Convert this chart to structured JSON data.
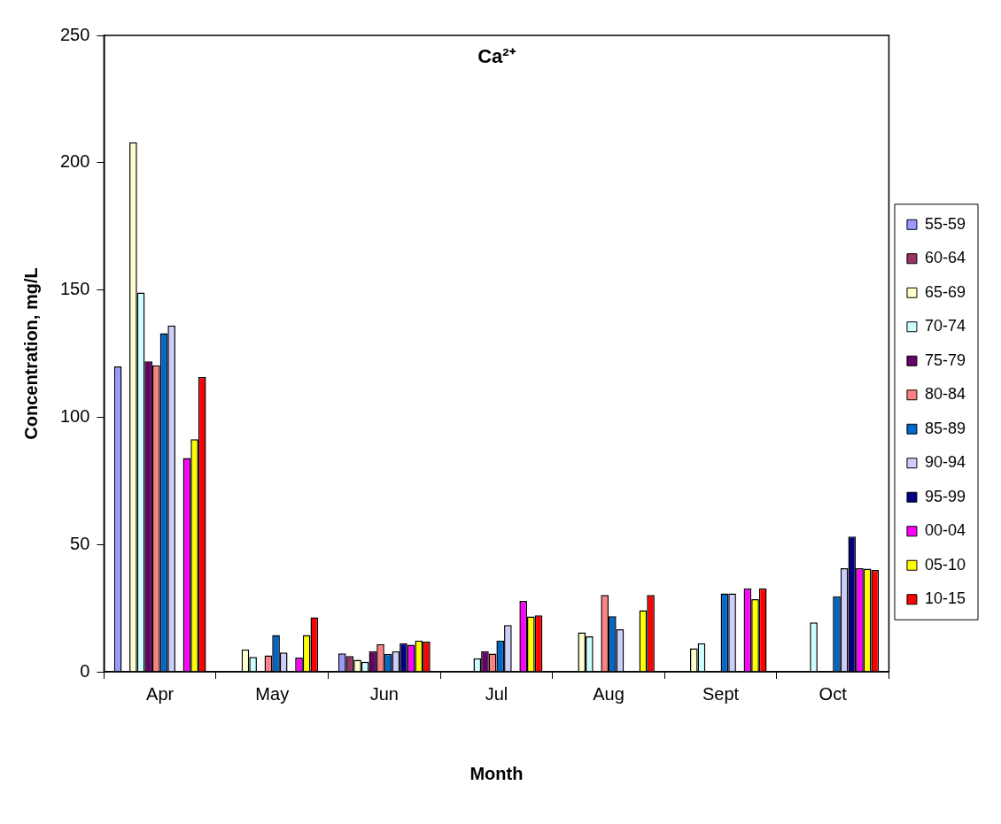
{
  "chart_data": {
    "type": "bar",
    "title": "Ca²⁺",
    "xlabel": "Month",
    "ylabel": "Concentration, mg/L",
    "categories": [
      "Apr",
      "May",
      "Jun",
      "Jul",
      "Aug",
      "Sept",
      "Oct"
    ],
    "series": [
      {
        "name": "55-59",
        "color": "#9999ff",
        "values": [
          120,
          null,
          7.2,
          null,
          null,
          null,
          null
        ]
      },
      {
        "name": "60-64",
        "color": "#993366",
        "values": [
          null,
          null,
          6.2,
          null,
          null,
          null,
          null
        ]
      },
      {
        "name": "65-69",
        "color": "#ffffcc",
        "values": [
          208,
          8.8,
          4.7,
          null,
          15.5,
          9.2,
          null
        ]
      },
      {
        "name": "70-74",
        "color": "#ccffff",
        "values": [
          149,
          5.8,
          3.9,
          5.3,
          13.9,
          11.2,
          19.4
        ]
      },
      {
        "name": "75-79",
        "color": "#660066",
        "values": [
          122,
          null,
          8.1,
          8.1,
          null,
          null,
          null
        ]
      },
      {
        "name": "80-84",
        "color": "#ff8080",
        "values": [
          120.4,
          6.4,
          10.9,
          7.1,
          30.2,
          null,
          null
        ]
      },
      {
        "name": "85-89",
        "color": "#0066cc",
        "values": [
          133,
          14.4,
          7,
          12.3,
          21.8,
          30.8,
          29.6
        ]
      },
      {
        "name": "90-94",
        "color": "#ccccff",
        "values": [
          136,
          7.6,
          8.1,
          18.3,
          16.7,
          30.8,
          40.7
        ]
      },
      {
        "name": "95-99",
        "color": "#000080",
        "values": [
          null,
          null,
          11.2,
          null,
          null,
          null,
          53.1
        ]
      },
      {
        "name": "00-04",
        "color": "#ff00ff",
        "values": [
          84,
          5.6,
          10.6,
          27.8,
          null,
          32.8,
          40.7
        ]
      },
      {
        "name": "05-10",
        "color": "#ffff00",
        "values": [
          91.4,
          14.4,
          12.3,
          21.7,
          24.2,
          28.5,
          40.5
        ]
      },
      {
        "name": "10-15",
        "color": "#ff0000",
        "values": [
          115.8,
          21.4,
          11.8,
          22.2,
          30.2,
          32.8,
          40
        ]
      }
    ],
    "ylim": [
      0,
      250
    ],
    "yticks": [
      0,
      50,
      100,
      150,
      200,
      250
    ],
    "grid": false,
    "legend": "right"
  }
}
